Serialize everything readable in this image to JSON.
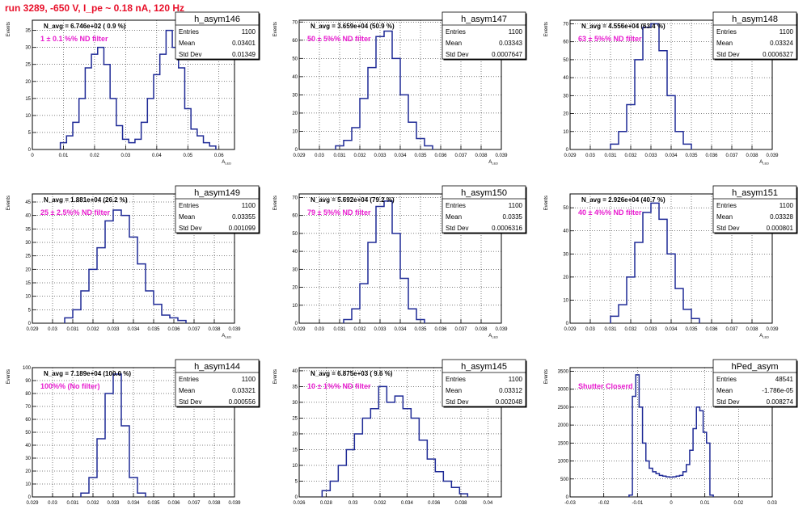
{
  "page": {
    "run_title": "run 3289,  -650 V, I_pe ~ 0.18 nA, 120 Hz"
  },
  "colors": {
    "hist_line": "#1f2a96",
    "annotation": "#e81ccf",
    "run_title": "#e8102a",
    "axes": "#000000",
    "grid": "#000000"
  },
  "chart_data": [
    {
      "type": "histogram",
      "name": "h_asym146",
      "navg": "N_avg = 6.746e+02 ( 0.9 %)",
      "filter_label": "1 ± 0.1 %% ND filter",
      "stats": [
        [
          "Entries",
          "1100"
        ],
        [
          "Mean",
          "0.03401"
        ],
        [
          "Std Dev",
          "0.01349"
        ]
      ],
      "xlim": [
        0,
        0.065
      ],
      "ylim": [
        0,
        38
      ],
      "xticks": [
        "0",
        "0.01",
        "0.02",
        "0.03",
        "0.04",
        "0.05",
        "0.06"
      ],
      "xtick_values": [
        0,
        0.01,
        0.02,
        0.03,
        0.04,
        0.05,
        0.06
      ],
      "yticks": [
        "0",
        "5",
        "10",
        "15",
        "20",
        "25",
        "30",
        "35"
      ],
      "ytick_values": [
        0,
        5,
        10,
        15,
        20,
        25,
        30,
        35
      ],
      "xlabel": "A_LED",
      "ylabel": "Events",
      "grid": true,
      "bins": {
        "x": [
          0.01,
          0.012,
          0.014,
          0.016,
          0.018,
          0.02,
          0.022,
          0.024,
          0.026,
          0.028,
          0.03,
          0.032,
          0.034,
          0.036,
          0.038,
          0.04,
          0.042,
          0.044,
          0.046,
          0.048,
          0.05,
          0.052,
          0.054,
          0.056,
          0.058
        ],
        "y": [
          2,
          4,
          8,
          15,
          24,
          28,
          30,
          25,
          15,
          7,
          3,
          2,
          3,
          8,
          15,
          22,
          28,
          35,
          30,
          24,
          12,
          6,
          4,
          2,
          1
        ]
      }
    },
    {
      "type": "histogram",
      "name": "h_asym147",
      "navg": "N_avg = 3.659e+04 (50.9 %)",
      "filter_label": "50 ± 5%% ND filter",
      "stats": [
        [
          "Entries",
          "1100"
        ],
        [
          "Mean",
          "0.03343"
        ],
        [
          "Std Dev",
          "0.0007647"
        ]
      ],
      "xlim": [
        0.029,
        0.039
      ],
      "ylim": [
        0,
        71
      ],
      "xticks": [
        "0.029",
        "0.03",
        "0.031",
        "0.032",
        "0.033",
        "0.034",
        "0.035",
        "0.036",
        "0.037",
        "0.038",
        "0.039"
      ],
      "xtick_values": [
        0.029,
        0.03,
        0.031,
        0.032,
        0.033,
        0.034,
        0.035,
        0.036,
        0.037,
        0.038,
        0.039
      ],
      "yticks": [
        "0",
        "10",
        "20",
        "30",
        "40",
        "50",
        "60",
        "70"
      ],
      "ytick_values": [
        0,
        10,
        20,
        30,
        40,
        50,
        60,
        70
      ],
      "xlabel": "A_LED",
      "ylabel": "Events",
      "grid": true,
      "bins": {
        "x": [
          0.031,
          0.0314,
          0.0318,
          0.0322,
          0.0326,
          0.033,
          0.0334,
          0.0338,
          0.0342,
          0.0346,
          0.035,
          0.0354
        ],
        "y": [
          2,
          5,
          12,
          28,
          45,
          62,
          65,
          50,
          30,
          15,
          6,
          2
        ]
      }
    },
    {
      "type": "histogram",
      "name": "h_asym148",
      "navg": "N_avg = 4.556e+04 (63.4 %)",
      "filter_label": "63 ± 5%% ND filter",
      "stats": [
        [
          "Entries",
          "1100"
        ],
        [
          "Mean",
          "0.03324"
        ],
        [
          "Std Dev",
          "0.0006327"
        ]
      ],
      "xlim": [
        0.029,
        0.039
      ],
      "ylim": [
        0,
        72
      ],
      "xticks": [
        "0.029",
        "0.03",
        "0.031",
        "0.032",
        "0.033",
        "0.034",
        "0.035",
        "0.036",
        "0.037",
        "0.038",
        "0.039"
      ],
      "xtick_values": [
        0.029,
        0.03,
        0.031,
        0.032,
        0.033,
        0.034,
        0.035,
        0.036,
        0.037,
        0.038,
        0.039
      ],
      "yticks": [
        "0",
        "10",
        "20",
        "30",
        "40",
        "50",
        "60",
        "70"
      ],
      "ytick_values": [
        0,
        10,
        20,
        30,
        40,
        50,
        60,
        70
      ],
      "xlabel": "A_LED",
      "ylabel": "Events",
      "grid": true,
      "bins": {
        "x": [
          0.0312,
          0.0316,
          0.032,
          0.0324,
          0.0328,
          0.0332,
          0.0336,
          0.034,
          0.0344,
          0.0348
        ],
        "y": [
          3,
          10,
          25,
          50,
          68,
          70,
          55,
          30,
          10,
          3
        ]
      }
    },
    {
      "type": "histogram",
      "name": "h_asym149",
      "navg": "N_avg = 1.881e+04 (26.2 %)",
      "filter_label": "25 ± 2.5%% ND filter",
      "stats": [
        [
          "Entries",
          "1100"
        ],
        [
          "Mean",
          "0.03355"
        ],
        [
          "Std Dev",
          "0.001099"
        ]
      ],
      "xlim": [
        0.029,
        0.039
      ],
      "ylim": [
        0,
        48
      ],
      "xticks": [
        "0.029",
        "0.03",
        "0.031",
        "0.032",
        "0.033",
        "0.034",
        "0.035",
        "0.036",
        "0.037",
        "0.038",
        "0.039"
      ],
      "xtick_values": [
        0.029,
        0.03,
        0.031,
        0.032,
        0.033,
        0.034,
        0.035,
        0.036,
        0.037,
        0.038,
        0.039
      ],
      "yticks": [
        "0",
        "5",
        "10",
        "15",
        "20",
        "25",
        "30",
        "35",
        "40",
        "45"
      ],
      "ytick_values": [
        0,
        5,
        10,
        15,
        20,
        25,
        30,
        35,
        40,
        45
      ],
      "xlabel": "A_LED",
      "ylabel": "Events",
      "grid": true,
      "bins": {
        "x": [
          0.0308,
          0.0312,
          0.0316,
          0.032,
          0.0324,
          0.0328,
          0.0332,
          0.0336,
          0.034,
          0.0344,
          0.0348,
          0.0352,
          0.0356,
          0.036,
          0.0364
        ],
        "y": [
          2,
          5,
          12,
          20,
          28,
          38,
          42,
          40,
          32,
          22,
          12,
          7,
          3,
          2,
          1
        ]
      }
    },
    {
      "type": "histogram",
      "name": "h_asym150",
      "navg": "N_avg = 5.692e+04 (79.2 %)",
      "filter_label": "79 ± 5%% ND filter",
      "stats": [
        [
          "Entries",
          "1100"
        ],
        [
          "Mean",
          "0.0335"
        ],
        [
          "Std Dev",
          "0.0006316"
        ]
      ],
      "xlim": [
        0.029,
        0.039
      ],
      "ylim": [
        0,
        72
      ],
      "xticks": [
        "0.029",
        "0.03",
        "0.031",
        "0.032",
        "0.033",
        "0.034",
        "0.035",
        "0.036",
        "0.037",
        "0.038",
        "0.039"
      ],
      "xtick_values": [
        0.029,
        0.03,
        0.031,
        0.032,
        0.033,
        0.034,
        0.035,
        0.036,
        0.037,
        0.038,
        0.039
      ],
      "yticks": [
        "0",
        "10",
        "20",
        "30",
        "40",
        "50",
        "60",
        "70"
      ],
      "ytick_values": [
        0,
        10,
        20,
        30,
        40,
        50,
        60,
        70
      ],
      "xlabel": "A_LED",
      "ylabel": "Events",
      "grid": true,
      "bins": {
        "x": [
          0.0314,
          0.0318,
          0.0322,
          0.0326,
          0.033,
          0.0334,
          0.0338,
          0.0342,
          0.0346,
          0.035
        ],
        "y": [
          2,
          8,
          22,
          45,
          65,
          68,
          50,
          25,
          8,
          2
        ]
      }
    },
    {
      "type": "histogram",
      "name": "h_asym151",
      "navg": "N_avg = 2.926e+04 (40.7 %)",
      "filter_label": "40 ± 4%% ND filter",
      "stats": [
        [
          "Entries",
          "1100"
        ],
        [
          "Mean",
          "0.03328"
        ],
        [
          "Std Dev",
          "0.000801"
        ]
      ],
      "xlim": [
        0.029,
        0.039
      ],
      "ylim": [
        0,
        56
      ],
      "xticks": [
        "0.029",
        "0.03",
        "0.031",
        "0.032",
        "0.033",
        "0.034",
        "0.035",
        "0.036",
        "0.037",
        "0.038",
        "0.039"
      ],
      "xtick_values": [
        0.029,
        0.03,
        0.031,
        0.032,
        0.033,
        0.034,
        0.035,
        0.036,
        0.037,
        0.038,
        0.039
      ],
      "yticks": [
        "0",
        "10",
        "20",
        "30",
        "40",
        "50"
      ],
      "ytick_values": [
        0,
        10,
        20,
        30,
        40,
        50
      ],
      "xlabel": "A_LED",
      "ylabel": "Events",
      "grid": true,
      "bins": {
        "x": [
          0.0312,
          0.0316,
          0.032,
          0.0324,
          0.0328,
          0.0332,
          0.0336,
          0.034,
          0.0344,
          0.0348,
          0.0352
        ],
        "y": [
          3,
          8,
          20,
          35,
          48,
          52,
          45,
          30,
          15,
          6,
          2
        ]
      }
    },
    {
      "type": "histogram",
      "name": "h_asym144",
      "navg": "N_avg = 7.189e+04 (100.0 %)",
      "filter_label": "100%% (No filter)",
      "stats": [
        [
          "Entries",
          "1100"
        ],
        [
          "Mean",
          "0.03321"
        ],
        [
          "Std Dev",
          "0.000556"
        ]
      ],
      "xlim": [
        0.029,
        0.039
      ],
      "ylim": [
        0,
        100
      ],
      "xticks": [
        "0.029",
        "0.03",
        "0.031",
        "0.032",
        "0.033",
        "0.034",
        "0.035",
        "0.036",
        "0.037",
        "0.038",
        "0.039"
      ],
      "xtick_values": [
        0.029,
        0.03,
        0.031,
        0.032,
        0.033,
        0.034,
        0.035,
        0.036,
        0.037,
        0.038,
        0.039
      ],
      "yticks": [
        "0",
        "10",
        "20",
        "30",
        "40",
        "50",
        "60",
        "70",
        "80",
        "90",
        "100"
      ],
      "ytick_values": [
        0,
        10,
        20,
        30,
        40,
        50,
        60,
        70,
        80,
        90,
        100
      ],
      "xlabel": "A_LED",
      "ylabel": "Events",
      "grid": true,
      "bins": {
        "x": [
          0.0316,
          0.032,
          0.0324,
          0.0328,
          0.0332,
          0.0336,
          0.034,
          0.0344
        ],
        "y": [
          3,
          15,
          45,
          80,
          95,
          55,
          15,
          3
        ]
      }
    },
    {
      "type": "histogram",
      "name": "h_asym145",
      "navg": "N_avg = 6.875e+03 ( 9.6 %)",
      "filter_label": "10 ± 1%% ND filter",
      "stats": [
        [
          "Entries",
          "1100"
        ],
        [
          "Mean",
          "0.03312"
        ],
        [
          "Std Dev",
          "0.002048"
        ]
      ],
      "xlim": [
        0.026,
        0.041
      ],
      "ylim": [
        0,
        41
      ],
      "xticks": [
        "0.026",
        "0.028",
        "0.03",
        "0.032",
        "0.034",
        "0.036",
        "0.038",
        "0.04"
      ],
      "xtick_values": [
        0.026,
        0.028,
        0.03,
        0.032,
        0.034,
        0.036,
        0.038,
        0.04
      ],
      "yticks": [
        "0",
        "5",
        "10",
        "15",
        "20",
        "25",
        "30",
        "35",
        "40"
      ],
      "ytick_values": [
        0,
        5,
        10,
        15,
        20,
        25,
        30,
        35,
        40
      ],
      "xlabel": "A_LED",
      "ylabel": "Events",
      "grid": true,
      "bins": {
        "x": [
          0.028,
          0.0286,
          0.0292,
          0.0298,
          0.0304,
          0.031,
          0.0316,
          0.0322,
          0.0328,
          0.0334,
          0.034,
          0.0346,
          0.0352,
          0.0358,
          0.0364,
          0.037,
          0.0376,
          0.0382
        ],
        "y": [
          2,
          5,
          10,
          15,
          20,
          25,
          28,
          35,
          30,
          32,
          28,
          25,
          18,
          12,
          8,
          5,
          3,
          1
        ]
      }
    },
    {
      "type": "histogram",
      "name": "hPed_asym",
      "navg": "",
      "filter_label": "Shutter Closerd",
      "stats": [
        [
          "Entries",
          "48541"
        ],
        [
          "Mean",
          "-1.786e-05"
        ],
        [
          "Std Dev",
          "0.008274"
        ]
      ],
      "xlim": [
        -0.03,
        0.03
      ],
      "ylim": [
        0,
        3600
      ],
      "xticks": [
        "-0.03",
        "-0.02",
        "-0.01",
        "0",
        "0.01",
        "0.02",
        "0.03"
      ],
      "xtick_values": [
        -0.03,
        -0.02,
        -0.01,
        0,
        0.01,
        0.02,
        0.03
      ],
      "yticks": [
        "0",
        "500",
        "1000",
        "1500",
        "2000",
        "2500",
        "3000",
        "3500"
      ],
      "ytick_values": [
        0,
        500,
        1000,
        1500,
        2000,
        2500,
        3000,
        3500
      ],
      "xlabel": "A_LED",
      "ylabel": "Events",
      "grid": true,
      "bins": {
        "x": [
          -0.012,
          -0.011,
          -0.01,
          -0.009,
          -0.008,
          -0.007,
          -0.006,
          -0.005,
          -0.004,
          -0.003,
          -0.002,
          -0.001,
          0,
          0.001,
          0.002,
          0.003,
          0.004,
          0.005,
          0.006,
          0.007,
          0.008,
          0.009,
          0.01,
          0.011,
          0.012
        ],
        "y": [
          50,
          2800,
          3400,
          2500,
          1500,
          1000,
          800,
          700,
          650,
          600,
          580,
          560,
          550,
          560,
          580,
          600,
          700,
          900,
          1300,
          1900,
          2500,
          2400,
          1800,
          1500,
          50
        ]
      }
    }
  ]
}
